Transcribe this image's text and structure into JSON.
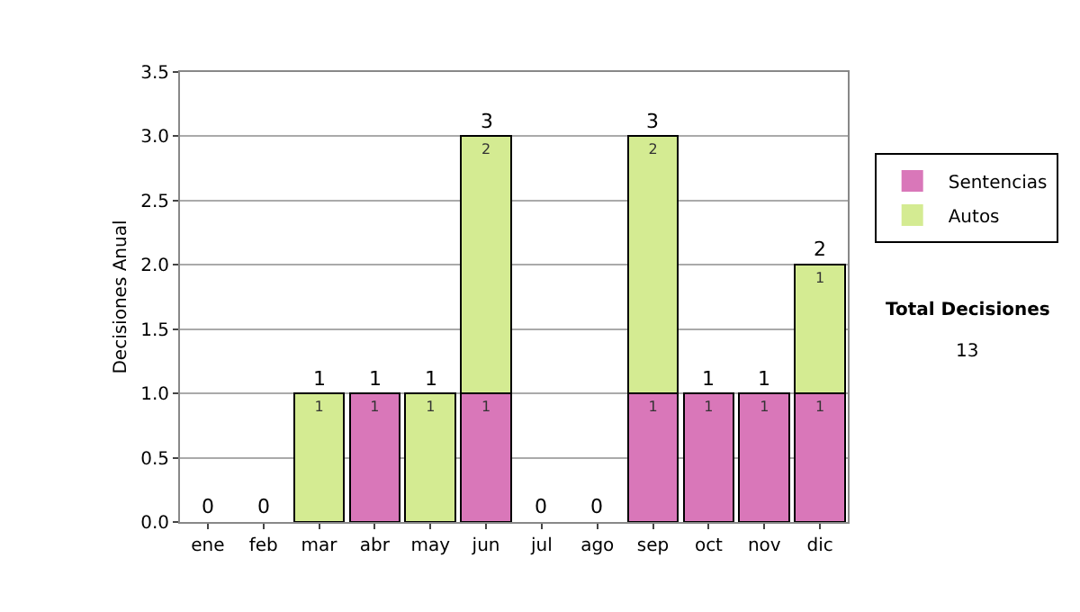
{
  "chart_data": {
    "type": "bar",
    "ylabel": "Decisiones Anual",
    "categories": [
      "ene",
      "feb",
      "mar",
      "abr",
      "may",
      "jun",
      "jul",
      "ago",
      "sep",
      "oct",
      "nov",
      "dic"
    ],
    "series": [
      {
        "name": "Sentencias",
        "color": "#d977b9",
        "values": [
          0,
          0,
          0,
          1,
          0,
          1,
          0,
          0,
          1,
          1,
          1,
          1
        ],
        "value_labels": [
          null,
          null,
          null,
          "1",
          null,
          "1",
          null,
          null,
          "1",
          "1",
          "1",
          "1"
        ]
      },
      {
        "name": "Autos",
        "color": "#d4eb92",
        "values": [
          0,
          0,
          1,
          0,
          1,
          2,
          0,
          0,
          2,
          0,
          0,
          1
        ],
        "value_labels": [
          null,
          null,
          "1",
          null,
          "1",
          "2",
          null,
          null,
          "2",
          null,
          null,
          "1"
        ]
      }
    ],
    "stacked": true,
    "totals": [
      "0",
      "0",
      "1",
      "1",
      "1",
      "3",
      "0",
      "0",
      "3",
      "1",
      "1",
      "2"
    ],
    "ylim": [
      0,
      3.5
    ],
    "yticks": [
      {
        "value": 0,
        "label": "0.0"
      },
      {
        "value": 0.5,
        "label": "0.5"
      },
      {
        "value": 1,
        "label": "1.0"
      },
      {
        "value": 1.5,
        "label": "1.5"
      },
      {
        "value": 2,
        "label": "2.0"
      },
      {
        "value": 2.5,
        "label": "2.5"
      },
      {
        "value": 3,
        "label": "3.0"
      },
      {
        "value": 3.5,
        "label": "3.5"
      }
    ],
    "grid": "y",
    "legend": "right",
    "annotations": [
      "Total Decisiones",
      "13"
    ]
  }
}
